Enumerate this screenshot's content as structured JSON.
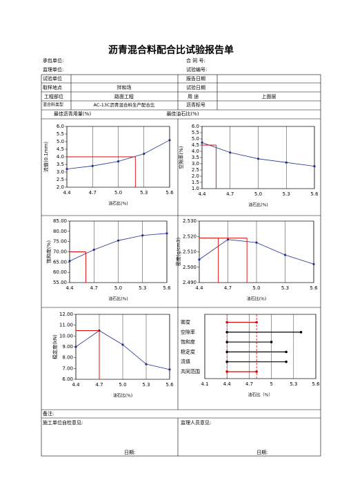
{
  "title": "沥青混合料配合比试验报告单",
  "header": {
    "contractor": "承包单位:",
    "contract_no": "合 同 号:",
    "supervisor": "监理单位:",
    "test_no": "试验编号:"
  },
  "table": {
    "rows": [
      [
        "试验单位",
        "报告日期"
      ],
      [
        "取样地点",
        "拌和场",
        "试验日期"
      ],
      [
        "工程部位",
        "路面工程",
        "用 途",
        "上面层"
      ],
      [
        "混合料类型",
        "AC-13C沥青混合料生产配合比",
        "沥青标号"
      ],
      [
        "最佳沥青用量(%)",
        "最佳油石比(%)"
      ]
    ]
  },
  "chart_data": [
    {
      "type": "line",
      "y_label": "流值(0.1mm)",
      "x_label": "油石比(%)",
      "color": "#1f2f8f",
      "guide_color": "#e00000",
      "x": [
        4.4,
        4.7,
        5.0,
        5.3,
        5.6
      ],
      "values": [
        3.2,
        3.4,
        3.7,
        4.2,
        5.1
      ],
      "xlim": [
        4.4,
        5.6
      ],
      "xticks": [
        4.4,
        4.7,
        {
          "value": 5,
          "label": "5.0"
        },
        5.3,
        5.6
      ],
      "ylim": [
        2,
        6
      ],
      "yticks": [
        {
          "value": 2,
          "label": "2.0"
        },
        2.5,
        {
          "value": 3,
          "label": "3.0"
        },
        3.5,
        {
          "value": 4,
          "label": "4.0"
        },
        4.5,
        {
          "value": 5,
          "label": "5.0"
        },
        5.5,
        {
          "value": 6,
          "label": "6.0"
        }
      ],
      "reference_lines": [
        {
          "x": 5.2,
          "y": 4.0
        }
      ]
    },
    {
      "type": "line",
      "y_label": "空隙率(%)",
      "x_label": "油石比(%)",
      "color": "#1f2f8f",
      "guide_color": "#e00000",
      "x": [
        4.4,
        4.7,
        5.0,
        5.3,
        5.6
      ],
      "values": [
        4.7,
        3.9,
        3.4,
        3.1,
        2.8
      ],
      "xlim": [
        4.4,
        5.6
      ],
      "xticks": [
        4.4,
        4.7,
        {
          "value": 5,
          "label": "5.0"
        },
        5.3,
        5.6
      ],
      "ylim": [
        1,
        6
      ],
      "yticks": [
        {
          "value": 1,
          "label": "1.0"
        },
        1.5,
        {
          "value": 2,
          "label": "2.0"
        },
        2.5,
        {
          "value": 3,
          "label": "3.0"
        },
        3.5,
        {
          "value": 4,
          "label": "4.0"
        },
        4.5,
        {
          "value": 5,
          "label": "5.0"
        },
        5.5,
        {
          "value": 6,
          "label": "6.0"
        }
      ],
      "reference_lines": [
        {
          "x": 4.55,
          "y": 4.5
        }
      ]
    },
    {
      "type": "line",
      "y_label": "饱和度(%)",
      "x_label": "油石比(%)",
      "color": "#1f2f8f",
      "guide_color": "#e00000",
      "x": [
        4.4,
        4.7,
        5.0,
        5.3,
        5.6
      ],
      "values": [
        65.5,
        71,
        75.5,
        78,
        79
      ],
      "xlim": [
        4.4,
        5.6
      ],
      "xticks": [
        4.4,
        4.7,
        {
          "value": 5,
          "label": "5.0"
        },
        5.3,
        5.6
      ],
      "ylim": [
        55,
        85
      ],
      "yticks": [
        {
          "value": 55,
          "label": "55.00"
        },
        {
          "value": 60,
          "label": "60.00"
        },
        {
          "value": 65,
          "label": "65.00"
        },
        {
          "value": 70,
          "label": "70.00"
        },
        {
          "value": 75,
          "label": "75.00"
        },
        {
          "value": 80,
          "label": "80.00"
        },
        {
          "value": 85,
          "label": "85.00"
        }
      ],
      "reference_lines": [
        {
          "x": 4.6,
          "y": 70
        }
      ]
    },
    {
      "type": "line",
      "y_label": "密度(g/cm3)",
      "x_label": "油石比(%)",
      "color": "#1f2f8f",
      "guide_color": "#e00000",
      "x": [
        4.4,
        4.7,
        5.0,
        5.3,
        5.6
      ],
      "values": [
        2.505,
        2.518,
        2.516,
        2.508,
        2.502
      ],
      "xlim": [
        4.4,
        5.6
      ],
      "xticks": [
        4.4,
        4.7,
        {
          "value": 5,
          "label": "5.0"
        },
        5.3,
        5.6
      ],
      "ylim": [
        2.49,
        2.53
      ],
      "yticks": [
        {
          "value": 2.49,
          "label": "2.490"
        },
        {
          "value": 2.5,
          "label": "2.500"
        },
        {
          "value": 2.51,
          "label": "2.510"
        },
        {
          "value": 2.52,
          "label": "2.520"
        },
        {
          "value": 2.53,
          "label": "2.530"
        }
      ],
      "reference_lines": [
        {
          "x": 4.6,
          "y": 2.519
        },
        {
          "x": 4.9,
          "y": 2.519
        }
      ]
    },
    {
      "type": "line",
      "y_label": "稳定度(kN)",
      "x_label": "油石比(%)",
      "color": "#1f2f8f",
      "guide_color": "#e00000",
      "x": [
        4.4,
        4.7,
        5.0,
        5.3,
        5.6
      ],
      "values": [
        9.0,
        10.5,
        9.2,
        7.4,
        6.9
      ],
      "xlim": [
        4.4,
        5.6
      ],
      "xticks": [
        4.4,
        4.7,
        {
          "value": 5,
          "label": "5.0"
        },
        5.3,
        5.6
      ],
      "ylim": [
        6,
        12
      ],
      "yticks": [
        {
          "value": 6,
          "label": "6.00"
        },
        {
          "value": 7,
          "label": "7.00"
        },
        {
          "value": 8,
          "label": "8.00"
        },
        {
          "value": 9,
          "label": "9.00"
        },
        {
          "value": 10,
          "label": "10.00"
        },
        {
          "value": 11,
          "label": "11.00"
        },
        {
          "value": 12,
          "label": "12.00"
        }
      ],
      "reference_lines": [
        {
          "x": 4.7,
          "y": 10.5
        }
      ]
    },
    {
      "type": "range",
      "x_label": "油石比（%）",
      "xlim": [
        4.1,
        5.6
      ],
      "xticks": [
        4.1,
        4.4,
        4.7,
        5,
        5.3,
        5.6
      ],
      "series": [
        {
          "name": "密度",
          "color": "#e00000",
          "values": [
            4.4,
            4.8
          ]
        },
        {
          "name": "空隙率",
          "color": "#000000",
          "values": [
            4.4,
            5.4
          ]
        },
        {
          "name": "饱和度",
          "color": "#000000",
          "values": [
            4.4,
            5.0
          ]
        },
        {
          "name": "稳定度",
          "color": "#000000",
          "values": [
            4.4,
            5.2
          ]
        },
        {
          "name": "流值",
          "color": "#000000",
          "values": [
            4.4,
            5.2
          ]
        },
        {
          "name": "共同范围",
          "color": "#e00000",
          "values": [
            4.4,
            4.8
          ]
        }
      ]
    }
  ],
  "footer": {
    "remarks": "备注:",
    "self_check": "施工单位自检意见:",
    "supervisor_opinion": "监理人员意见:",
    "date_left": "日期:",
    "date_right": "日期:"
  }
}
